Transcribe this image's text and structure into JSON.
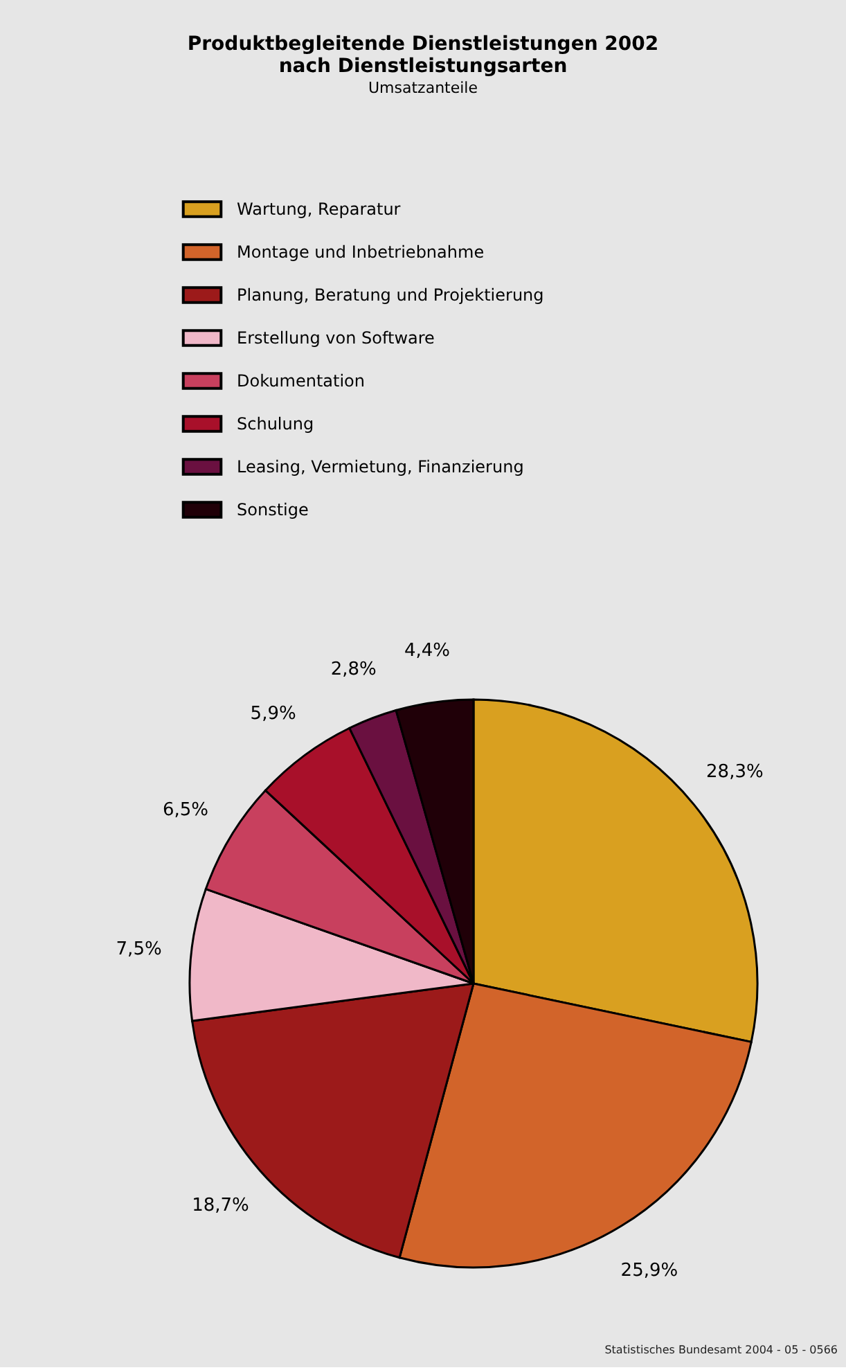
{
  "chart_data": {
    "type": "pie",
    "title": "Produktbegleitende Dienstleistungen 2002\nnach Dienstleistungsarten",
    "subtitle": "Umsatzanteile",
    "categories": [
      "Wartung, Reparatur",
      "Montage und Inbetriebnahme",
      "Planung, Beratung und Projektierung",
      "Erstellung von Software",
      "Dokumentation",
      "Schulung",
      "Leasing, Vermietung, Finanzierung",
      "Sonstige"
    ],
    "values": [
      28.3,
      25.9,
      18.7,
      7.5,
      6.5,
      5.9,
      2.8,
      4.4
    ],
    "value_labels": [
      "28,3%",
      "25,9%",
      "18,7%",
      "7,5%",
      "6,5%",
      "5,9%",
      "2,8%",
      "4,4%"
    ],
    "colors": [
      "#d9a020",
      "#d2642a",
      "#9c1a1a",
      "#f0b8c8",
      "#c8405e",
      "#a8102a",
      "#6a1040",
      "#200008"
    ],
    "legend": "top left",
    "annotations": [
      "Statistisches Bundesamt 2004 - 05 - 0566"
    ]
  }
}
